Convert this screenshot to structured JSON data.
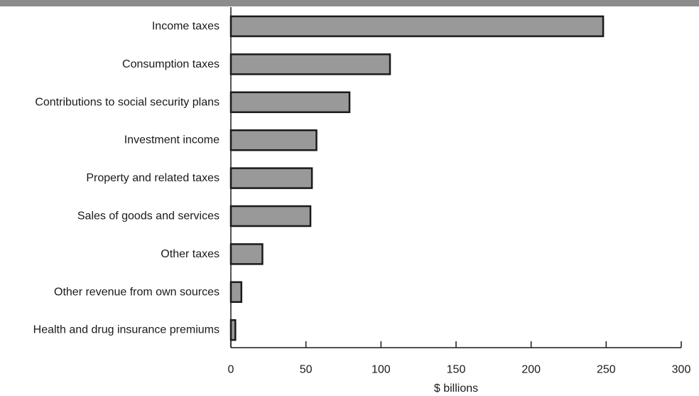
{
  "chart_data": {
    "type": "bar",
    "orientation": "horizontal",
    "categories": [
      "Income taxes",
      "Consumption taxes",
      "Contributions to social security plans",
      "Investment income",
      "Property and related taxes",
      "Sales of goods and services",
      "Other taxes",
      "Other revenue from own sources",
      "Health and drug insurance premiums"
    ],
    "values": [
      248,
      106,
      79,
      57,
      54,
      53,
      21,
      7,
      3
    ],
    "title": "",
    "xlabel": "$ billions",
    "ylabel": "",
    "xlim": [
      0,
      300
    ],
    "xticks": [
      0,
      50,
      100,
      150,
      200,
      250,
      300
    ],
    "xtick_labels": [
      "0",
      "50",
      "100",
      "150",
      "200",
      "250",
      "300"
    ],
    "grid": false,
    "legend": "none",
    "colors": {
      "bar_fill": "#999999",
      "bar_stroke": "#1a1a1a",
      "axis": "#1a1a1a",
      "top_rule": "#8c8c8c"
    }
  }
}
